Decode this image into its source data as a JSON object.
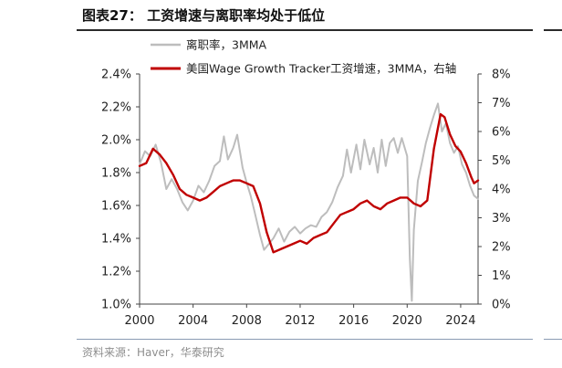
{
  "header": {
    "title": "图表27：  工资增速与离职率均处于低位"
  },
  "footer": {
    "source": "资料来源：Haver，华泰研究"
  },
  "colors": {
    "quits_line": "#bdbdbd",
    "wage_line": "#c00000",
    "axis": "#444444",
    "rule_top": "#2a2a2a",
    "rule_bottom": "#8a9bb3"
  },
  "chart_data": {
    "type": "line",
    "title": "工资增速与离职率均处于低位",
    "x_ticks": [
      "2000",
      "2004",
      "2008",
      "2012",
      "2016",
      "2020",
      "2024"
    ],
    "x_tick_values": [
      2000,
      2004,
      2008,
      2012,
      2016,
      2020,
      2024
    ],
    "xlim": [
      2000,
      2025.3
    ],
    "y_left": {
      "ticks": [
        "2.4%",
        "2.2%",
        "2.0%",
        "1.8%",
        "1.6%",
        "1.4%",
        "1.2%",
        "1.0%"
      ],
      "tick_values": [
        2.4,
        2.2,
        2.0,
        1.8,
        1.6,
        1.4,
        1.2,
        1.0
      ],
      "ylim": [
        1.0,
        2.4
      ]
    },
    "y_right": {
      "ticks": [
        "8%",
        "7%",
        "6%",
        "5%",
        "4%",
        "3%",
        "2%",
        "1%",
        "0%"
      ],
      "tick_values": [
        8,
        7,
        6,
        5,
        4,
        3,
        2,
        1,
        0
      ],
      "ylim": [
        0,
        8
      ]
    },
    "legend_position": "top-left",
    "series": [
      {
        "name": "离职率，3MMA",
        "axis": "left",
        "color": "#bdbdbd",
        "points": [
          [
            2000.0,
            1.85
          ],
          [
            2000.4,
            1.93
          ],
          [
            2000.8,
            1.9
          ],
          [
            2001.2,
            1.97
          ],
          [
            2001.6,
            1.86
          ],
          [
            2002.0,
            1.7
          ],
          [
            2002.4,
            1.76
          ],
          [
            2002.8,
            1.7
          ],
          [
            2003.2,
            1.62
          ],
          [
            2003.6,
            1.57
          ],
          [
            2004.0,
            1.63
          ],
          [
            2004.4,
            1.72
          ],
          [
            2004.8,
            1.68
          ],
          [
            2005.2,
            1.75
          ],
          [
            2005.6,
            1.84
          ],
          [
            2006.0,
            1.87
          ],
          [
            2006.3,
            2.02
          ],
          [
            2006.6,
            1.88
          ],
          [
            2007.0,
            1.95
          ],
          [
            2007.3,
            2.03
          ],
          [
            2007.7,
            1.83
          ],
          [
            2008.0,
            1.74
          ],
          [
            2008.3,
            1.66
          ],
          [
            2008.6,
            1.56
          ],
          [
            2009.0,
            1.42
          ],
          [
            2009.3,
            1.33
          ],
          [
            2009.6,
            1.36
          ],
          [
            2010.0,
            1.4
          ],
          [
            2010.4,
            1.46
          ],
          [
            2010.8,
            1.38
          ],
          [
            2011.2,
            1.44
          ],
          [
            2011.6,
            1.47
          ],
          [
            2012.0,
            1.43
          ],
          [
            2012.4,
            1.46
          ],
          [
            2012.8,
            1.48
          ],
          [
            2013.2,
            1.47
          ],
          [
            2013.6,
            1.53
          ],
          [
            2014.0,
            1.56
          ],
          [
            2014.4,
            1.62
          ],
          [
            2014.8,
            1.71
          ],
          [
            2015.2,
            1.78
          ],
          [
            2015.5,
            1.94
          ],
          [
            2015.8,
            1.8
          ],
          [
            2016.2,
            1.97
          ],
          [
            2016.5,
            1.82
          ],
          [
            2016.8,
            2.0
          ],
          [
            2017.2,
            1.85
          ],
          [
            2017.5,
            1.95
          ],
          [
            2017.8,
            1.8
          ],
          [
            2018.1,
            2.0
          ],
          [
            2018.4,
            1.84
          ],
          [
            2018.7,
            1.98
          ],
          [
            2019.0,
            2.01
          ],
          [
            2019.3,
            1.92
          ],
          [
            2019.6,
            2.01
          ],
          [
            2020.0,
            1.9
          ],
          [
            2020.2,
            1.28
          ],
          [
            2020.35,
            1.02
          ],
          [
            2020.5,
            1.45
          ],
          [
            2020.8,
            1.75
          ],
          [
            2021.1,
            1.86
          ],
          [
            2021.4,
            1.98
          ],
          [
            2021.7,
            2.07
          ],
          [
            2022.0,
            2.15
          ],
          [
            2022.3,
            2.22
          ],
          [
            2022.6,
            2.05
          ],
          [
            2022.9,
            2.1
          ],
          [
            2023.2,
            1.98
          ],
          [
            2023.5,
            1.92
          ],
          [
            2023.8,
            1.96
          ],
          [
            2024.1,
            1.85
          ],
          [
            2024.4,
            1.8
          ],
          [
            2024.7,
            1.72
          ],
          [
            2025.0,
            1.66
          ],
          [
            2025.3,
            1.64
          ]
        ]
      },
      {
        "name": "美国Wage Growth Tracker工资增速，3MMA，右轴",
        "axis": "right",
        "color": "#c00000",
        "points": [
          [
            2000.0,
            4.8
          ],
          [
            2000.5,
            4.9
          ],
          [
            2001.0,
            5.4
          ],
          [
            2001.5,
            5.2
          ],
          [
            2002.0,
            4.9
          ],
          [
            2002.5,
            4.5
          ],
          [
            2003.0,
            4.0
          ],
          [
            2003.5,
            3.8
          ],
          [
            2004.0,
            3.7
          ],
          [
            2004.5,
            3.6
          ],
          [
            2005.0,
            3.7
          ],
          [
            2005.5,
            3.9
          ],
          [
            2006.0,
            4.1
          ],
          [
            2006.5,
            4.2
          ],
          [
            2007.0,
            4.3
          ],
          [
            2007.5,
            4.3
          ],
          [
            2008.0,
            4.2
          ],
          [
            2008.5,
            4.1
          ],
          [
            2009.0,
            3.5
          ],
          [
            2009.5,
            2.5
          ],
          [
            2010.0,
            1.8
          ],
          [
            2010.5,
            1.9
          ],
          [
            2011.0,
            2.0
          ],
          [
            2011.5,
            2.1
          ],
          [
            2012.0,
            2.2
          ],
          [
            2012.5,
            2.1
          ],
          [
            2013.0,
            2.3
          ],
          [
            2013.5,
            2.4
          ],
          [
            2014.0,
            2.5
          ],
          [
            2014.5,
            2.8
          ],
          [
            2015.0,
            3.1
          ],
          [
            2015.5,
            3.2
          ],
          [
            2016.0,
            3.3
          ],
          [
            2016.5,
            3.5
          ],
          [
            2017.0,
            3.6
          ],
          [
            2017.5,
            3.4
          ],
          [
            2018.0,
            3.3
          ],
          [
            2018.5,
            3.5
          ],
          [
            2019.0,
            3.6
          ],
          [
            2019.5,
            3.7
          ],
          [
            2020.0,
            3.7
          ],
          [
            2020.5,
            3.5
          ],
          [
            2021.0,
            3.4
          ],
          [
            2021.5,
            3.6
          ],
          [
            2022.0,
            5.4
          ],
          [
            2022.5,
            6.6
          ],
          [
            2022.8,
            6.5
          ],
          [
            2023.2,
            5.9
          ],
          [
            2023.6,
            5.5
          ],
          [
            2024.0,
            5.3
          ],
          [
            2024.4,
            4.9
          ],
          [
            2024.8,
            4.4
          ],
          [
            2025.0,
            4.2
          ],
          [
            2025.3,
            4.3
          ]
        ]
      }
    ]
  }
}
